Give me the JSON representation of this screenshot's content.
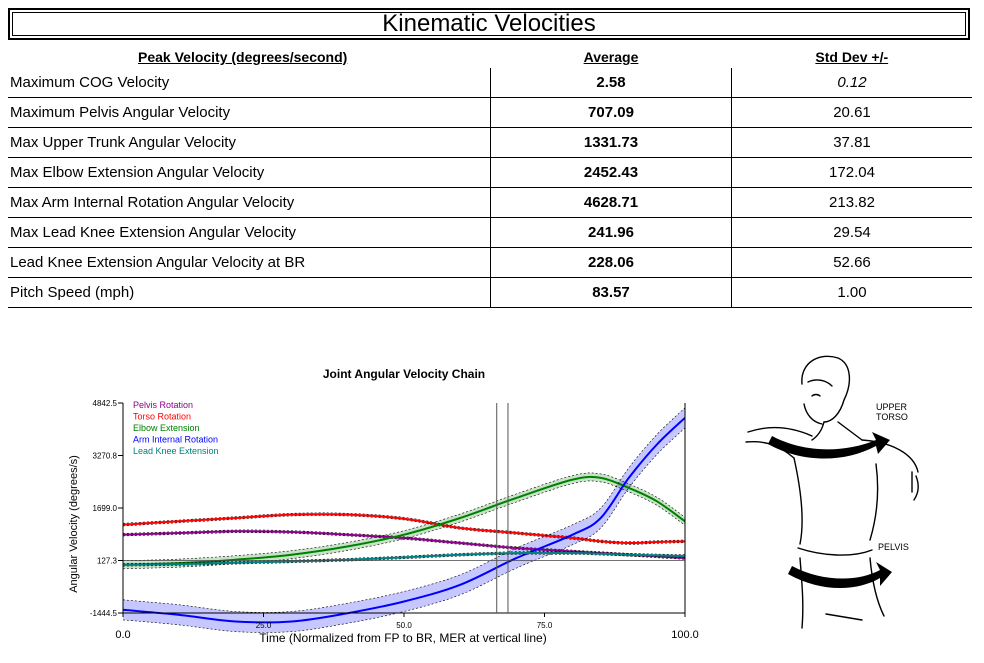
{
  "page_title": "Kinematic Velocities",
  "table": {
    "headers": {
      "label": "Peak Velocity (degrees/second)",
      "avg": "Average",
      "sd": "Std Dev +/-"
    },
    "rows": [
      {
        "label": "Maximum COG Velocity",
        "avg": "2.58",
        "sd": "0.12"
      },
      {
        "label": "Maximum Pelvis Angular Velocity",
        "avg": "707.09",
        "sd": "20.61"
      },
      {
        "label": "Max Upper Trunk Angular Velocity",
        "avg": "1331.73",
        "sd": "37.81"
      },
      {
        "label": "Max Elbow Extension Angular Velocity",
        "avg": "2452.43",
        "sd": "172.04"
      },
      {
        "label": "Max Arm Internal Rotation Angular Velocity",
        "avg": "4628.71",
        "sd": "213.82"
      },
      {
        "label": "Max Lead Knee Extension Angular Velocity",
        "avg": "241.96",
        "sd": "29.54"
      },
      {
        "label": "Lead Knee Extension Angular Velocity at BR",
        "avg": "228.06",
        "sd": "52.66"
      },
      {
        "label": "Pitch Speed (mph)",
        "avg": "83.57",
        "sd": "1.00"
      }
    ]
  },
  "chart_data": {
    "type": "line",
    "title": "Joint Angular Velocity Chain",
    "xlabel": "Time (Normalized from FP to BR, MER at vertical line)",
    "ylabel": "Angular Velocity (degrees/s)",
    "xlim": [
      0,
      100
    ],
    "ylim": [
      -1444.5,
      4842.5
    ],
    "x_ticks": [
      "0.0",
      "25.0",
      "50.0",
      "75.0",
      "100.0"
    ],
    "x_tick_values": [
      0,
      25,
      50,
      75,
      100
    ],
    "y_ticks": [
      "4842.5",
      "3270.8",
      "1699.0",
      "127.3",
      "-1444.5"
    ],
    "y_tick_values": [
      4842.5,
      3270.8,
      1699.0,
      127.3,
      -1444.5
    ],
    "mer_lines": [
      66.5,
      68.5
    ],
    "legend_position": "top-left",
    "x": [
      0,
      10,
      20,
      30,
      40,
      50,
      60,
      70,
      80,
      85,
      90,
      95,
      100
    ],
    "series": [
      {
        "name": "Pelvis Rotation",
        "color": "#8b008b",
        "values": [
          900,
          950,
          1000,
          980,
          900,
          800,
          650,
          500,
          400,
          350,
          300,
          250,
          200
        ],
        "band": 40
      },
      {
        "name": "Torso Rotation",
        "color": "#ff0000",
        "values": [
          1200,
          1300,
          1400,
          1500,
          1500,
          1380,
          1100,
          950,
          800,
          700,
          650,
          680,
          700
        ],
        "band": 40
      },
      {
        "name": "Elbow Extension",
        "color": "#008000",
        "values": [
          0,
          50,
          150,
          300,
          550,
          900,
          1400,
          2000,
          2550,
          2600,
          2300,
          1900,
          1300
        ],
        "band": 120
      },
      {
        "name": "Arm Internal Rotation",
        "color": "#0000ff",
        "values": [
          -1350,
          -1500,
          -1700,
          -1700,
          -1450,
          -1100,
          -600,
          200,
          900,
          1400,
          2600,
          3600,
          4400
        ],
        "band": 300
      },
      {
        "name": "Lead Knee Extension",
        "color": "#008080",
        "values": [
          0,
          20,
          60,
          100,
          150,
          220,
          300,
          350,
          350,
          330,
          300,
          280,
          260
        ],
        "band": 40
      }
    ]
  },
  "figure": {
    "upper_torso_label": "UPPER\nTORSO",
    "upper_torso_line1": "UPPER",
    "upper_torso_line2": "TORSO",
    "pelvis_label": "PELVIS"
  }
}
